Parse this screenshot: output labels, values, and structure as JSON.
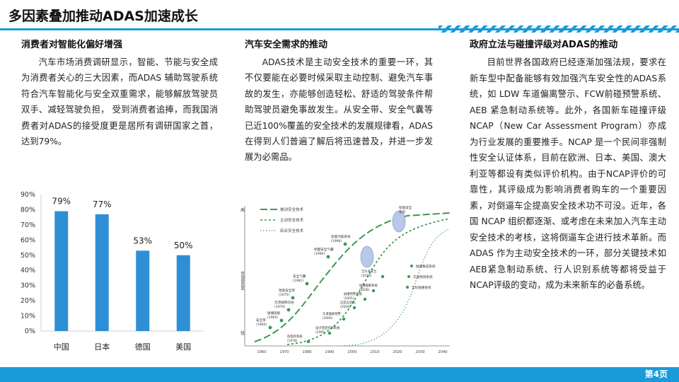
{
  "slide": {
    "title": "多因素叠加推动ADAS加速成长",
    "page_number": "第4页",
    "accent_color": "#1a9ad9"
  },
  "col1": {
    "heading": "消费者对智能化偏好增强",
    "body": "汽车市场消费调研显示，智能、节能与安全成为消费者关心的三大因素，而ADAS 辅助驾驶系统符合汽车智能化与安全双重需求，能够解放驾驶员双手、减轻驾驶负担， 受到消费者追捧，而我国消费者对ADAS的接受度更是居所有调研国家之首，达到79%。"
  },
  "col2": {
    "heading": "汽车安全需求的推动",
    "body": "ADAS技术是主动安全技术的重要一环，其不仅要能在必要时候采取主动控制、避免汽车事故的发生，亦能够创造轻松、舒适的驾驶条件帮助驾驶员避免事故发生。从安全带、安全气囊等已近100%覆盖的安全技术的发展规律看，ADAS在得到人们普遍了解后将迅速普及，并进一步发展为必需品。"
  },
  "col3": {
    "heading": "政府立法与碰撞评级对ADAS的推动",
    "body": "目前世界各国政府已经逐渐加强法规，要求在新车型中配备能够有效加强汽车安全性的ADAS系统，如 LDW 车道偏离警示、FCW前碰预警系统、 AEB 紧急制动系统等。此外，各国新车碰撞评级NCAP（New Car Assessment Program）亦成为行业发展的重要推手。NCAP 是一个民间非强制性安全认证体系，目前在欧洲、日本、美国、澳大利亚等都设有类似评价机构。由于NCAP评价的可靠性，其评级成为影响消费者购车的一个重要因素，对倒逼车企提高安全技术功不可没。近年，各国 NCAP 组织都逐渐、或考虑在未来加入汽车主动安全技术的考核，这将倒逼车企进行技术革新。而ADAS 作为主动安全技术的一环，部分关键技术如AEB紧急制动系统、行人识别系统等都将受益于NCAP评级的变动，成为未来新车的必备系统。"
  },
  "chart_data": {
    "type": "bar",
    "categories": [
      "中国",
      "日本",
      "德国",
      "美国"
    ],
    "values": [
      79,
      77,
      53,
      50
    ],
    "value_labels": [
      "79%",
      "77%",
      "53%",
      "50%"
    ],
    "y_ticks": [
      "0%",
      "10%",
      "20%",
      "30%",
      "40%",
      "50%",
      "60%",
      "70%",
      "80%",
      "90%"
    ],
    "ylim": [
      0,
      90
    ],
    "bar_color": "#2f8fd6",
    "grid": false,
    "legend": "none"
  },
  "figure": {
    "y_axis_top": "高",
    "y_axis_mid": "市场普及率",
    "y_axis_bottom": "低",
    "legend": [
      "被动安全技术",
      "主动安全技术",
      "综合安全技术"
    ],
    "x_ticks": [
      "1960",
      "1970",
      "1980",
      "1990",
      "2000",
      "2010",
      "2020",
      "2030",
      "2040"
    ],
    "passive_labels": [
      "安全带\n(1960)",
      "碰撞吸能\n(1965)",
      "可溃缩转向柱\n(1970)",
      "预紧安全带\n(1975)",
      "安全气囊\n(1981)",
      "侧面安全气囊\n(1990)",
      "智能内嵌系统\n(1996)"
    ],
    "active_labels": [
      "防抱死系统\n(1978)",
      "电子稳定控制系统\n(1995)",
      "车道偏离预警\n(2000)",
      "自适应巡航\n(2004)",
      "碰撞预警系统\n(2005)",
      "碰撞缓解系统\n(2008)",
      "全车身安全\n(2010)"
    ],
    "integrated_labels": [
      "智能安全\n系统",
      "碰撞集成系统",
      "交通预测系统",
      "全轮碰撞系统"
    ],
    "colors": {
      "passive": "#3a9a54",
      "active": "#3a9a54",
      "integrated": "#3a9a54",
      "bubble": "#b8c8e8"
    }
  }
}
